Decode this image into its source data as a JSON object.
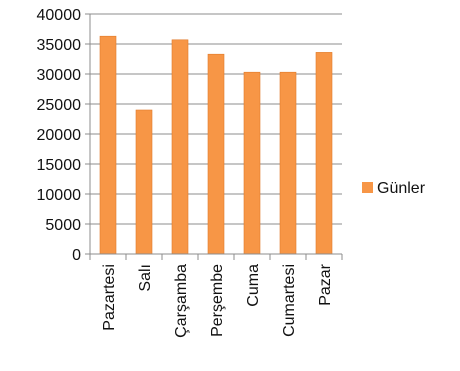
{
  "chart_data": {
    "type": "bar",
    "categories": [
      "Pazartesi",
      "Salı",
      "Çarşamba",
      "Perşembe",
      "Cuma",
      "Cumartesi",
      "Pazar"
    ],
    "series": [
      {
        "name": "Günler",
        "values": [
          36300,
          24000,
          35700,
          33300,
          30300,
          30300,
          33600
        ],
        "color": "#f79646"
      }
    ],
    "ylim": [
      0,
      40000
    ],
    "yticks": [
      0,
      5000,
      10000,
      15000,
      20000,
      25000,
      30000,
      35000,
      40000
    ],
    "grid": true,
    "legend_position": "right"
  }
}
